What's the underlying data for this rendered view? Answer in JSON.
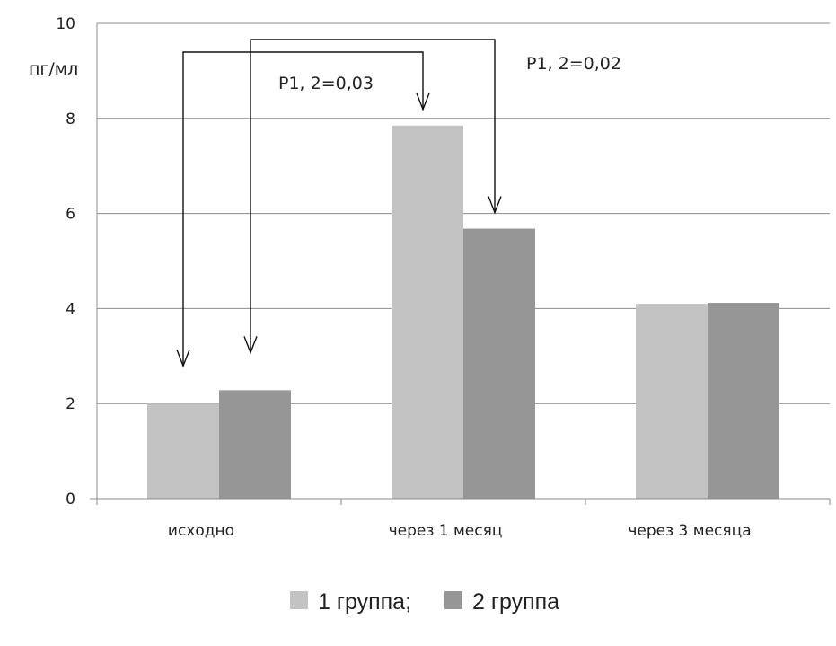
{
  "chart_data": {
    "type": "bar",
    "ylabel": "пг/мл",
    "ylim": [
      0,
      10
    ],
    "yticks": [
      0,
      2,
      4,
      6,
      8,
      10
    ],
    "grid": true,
    "categories": [
      "исходно",
      "через 1 месяц",
      "через 3 месяца"
    ],
    "series": [
      {
        "name": "1 группа;",
        "color": "#c3c3c3",
        "values": [
          2.0,
          7.85,
          4.1
        ]
      },
      {
        "name": "2 группа",
        "color": "#969696",
        "values": [
          2.28,
          5.68,
          4.12
        ]
      }
    ],
    "annotations": [
      {
        "text": "P1, 2=0,03",
        "from": [
          "исходно",
          "1 группа;"
        ],
        "to": [
          "через 1 месяц",
          "1 группа;"
        ]
      },
      {
        "text": "P1, 2=0,02",
        "from": [
          "исходно",
          "2 группа"
        ],
        "to": [
          "через 1 месяц",
          "2 группа"
        ]
      }
    ],
    "legend_position": "bottom-center"
  }
}
